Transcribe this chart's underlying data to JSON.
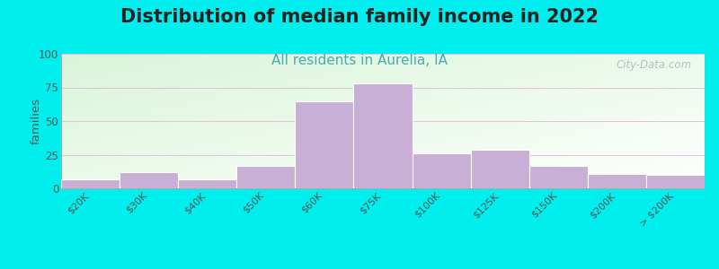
{
  "title": "Distribution of median family income in 2022",
  "subtitle": "All residents in Aurelia, IA",
  "categories": [
    "$20K",
    "$30K",
    "$40K",
    "$50K",
    "$60K",
    "$75K",
    "$100K",
    "$125K",
    "$150K",
    "$200K",
    "> $200K"
  ],
  "values": [
    7,
    12,
    7,
    17,
    65,
    78,
    26,
    29,
    17,
    11,
    10
  ],
  "bar_color": "#c9aed6",
  "bar_edgecolor": "#c9aed6",
  "ylabel": "families",
  "ylim": [
    0,
    100
  ],
  "yticks": [
    0,
    25,
    50,
    75,
    100
  ],
  "outer_background": "#00eeee",
  "title_fontsize": 15,
  "title_color": "#222222",
  "subtitle_fontsize": 11,
  "subtitle_color": "#4aadad",
  "watermark": "City-Data.com",
  "grid_color": "#ddb8d8",
  "grad_topleft": [
    0.85,
    0.96,
    0.85
  ],
  "grad_bottomright": [
    1.0,
    1.0,
    1.0
  ]
}
